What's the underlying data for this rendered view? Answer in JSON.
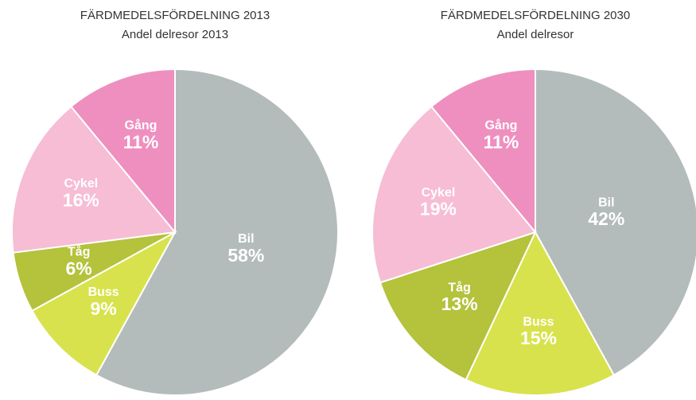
{
  "chart_data": [
    {
      "type": "pie",
      "title": "FÄRDMEDELSFÖRDELNING 2013",
      "subtitle": "Andel delresor 2013",
      "categories": [
        "Bil",
        "Buss",
        "Tåg",
        "Cykel",
        "Gång"
      ],
      "values": [
        58,
        9,
        6,
        16,
        11
      ],
      "value_labels": [
        "58%",
        "9%",
        "6%",
        "16%",
        "11%"
      ],
      "colors": [
        "#b3bcbb",
        "#d8e24c",
        "#b4c23c",
        "#f6bdd4",
        "#ee8fbf"
      ]
    },
    {
      "type": "pie",
      "title": "FÄRDMEDELSFÖRDELNING 2030",
      "subtitle": "Andel delresor",
      "categories": [
        "Bil",
        "Buss",
        "Tåg",
        "Cykel",
        "Gång"
      ],
      "values": [
        42,
        15,
        13,
        19,
        11
      ],
      "value_labels": [
        "42%",
        "15%",
        "13%",
        "19%",
        "11%"
      ],
      "colors": [
        "#b3bcbb",
        "#d8e24c",
        "#b4c23c",
        "#f6bdd4",
        "#ee8fbf"
      ]
    }
  ]
}
